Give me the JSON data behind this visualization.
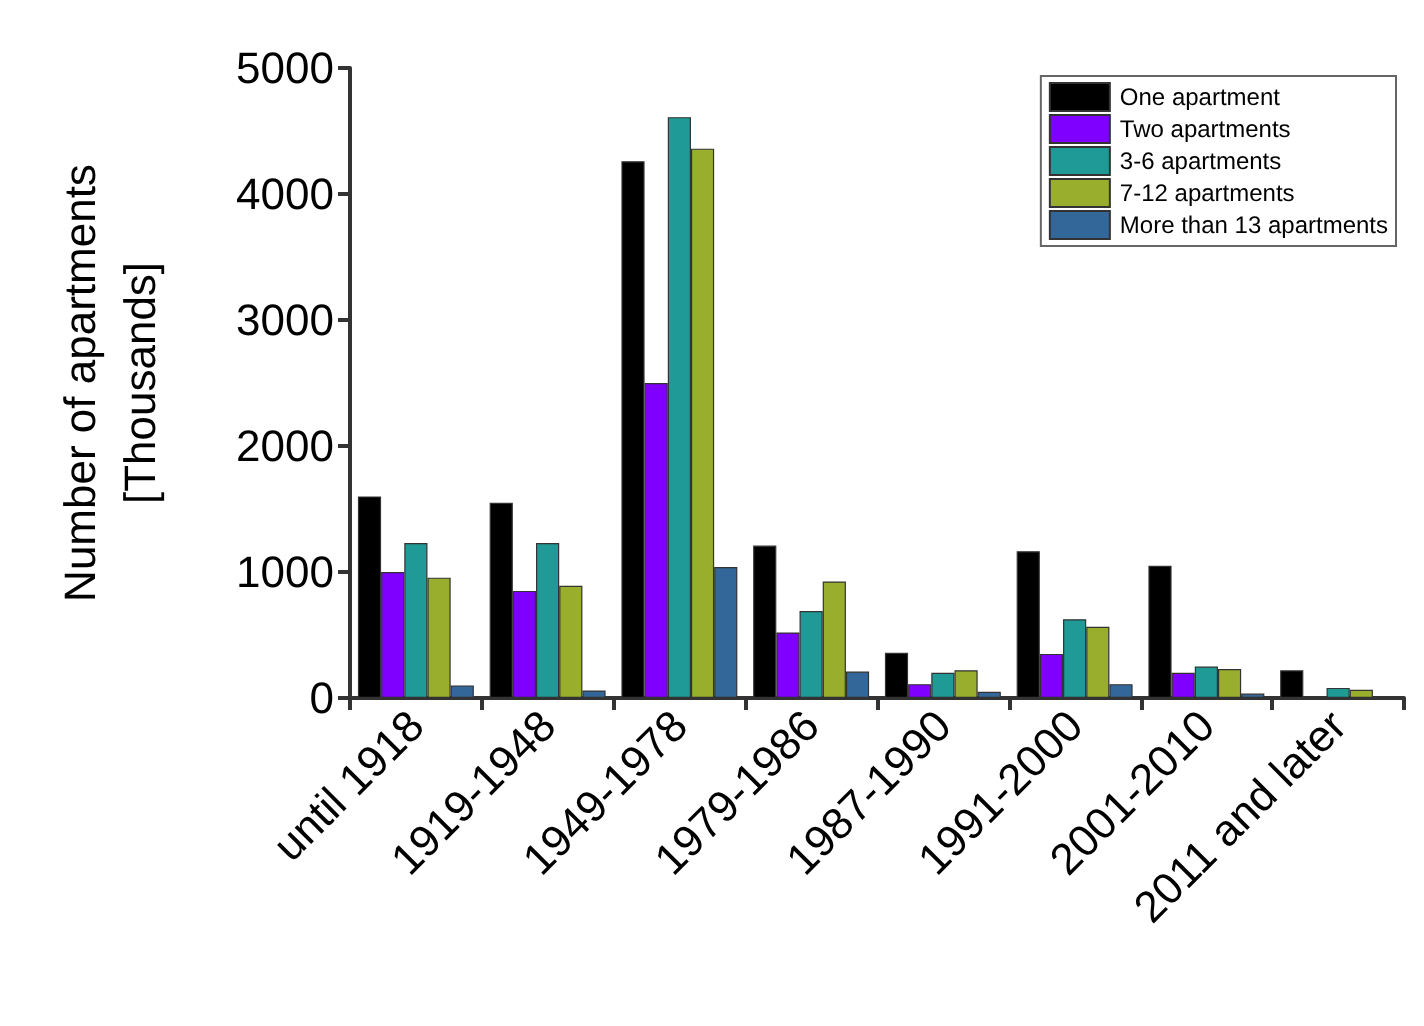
{
  "chart_data": {
    "type": "bar",
    "ylabel": "Number of apartments\n[Thousands]",
    "categories": [
      "until 1918",
      "1919-1948",
      "1949-1978",
      "1979-1986",
      "1987-1990",
      "1991-2000",
      "2001-2010",
      "2011 and later"
    ],
    "series": [
      {
        "name": "One apartment",
        "color": "#000000",
        "values": [
          1600,
          1550,
          4260,
          1210,
          360,
          1165,
          1050,
          220
        ]
      },
      {
        "name": "Two apartments",
        "color": "#7f00ff",
        "values": [
          1000,
          850,
          2500,
          520,
          110,
          350,
          200,
          null
        ]
      },
      {
        "name": "3-6 apartments",
        "color": "#1f9a96",
        "values": [
          1230,
          1230,
          4610,
          690,
          200,
          625,
          250,
          80
        ]
      },
      {
        "name": "7-12 apartments",
        "color": "#99ae2c",
        "values": [
          955,
          890,
          4360,
          925,
          220,
          565,
          230,
          65
        ]
      },
      {
        "name": "More than 13 apartments",
        "color": "#336699",
        "values": [
          100,
          60,
          1040,
          210,
          50,
          110,
          35,
          10
        ]
      }
    ],
    "ylim": [
      0,
      5000
    ],
    "yticks": [
      0,
      1000,
      2000,
      3000,
      4000,
      5000
    ],
    "grid": false,
    "legend": "top right"
  }
}
